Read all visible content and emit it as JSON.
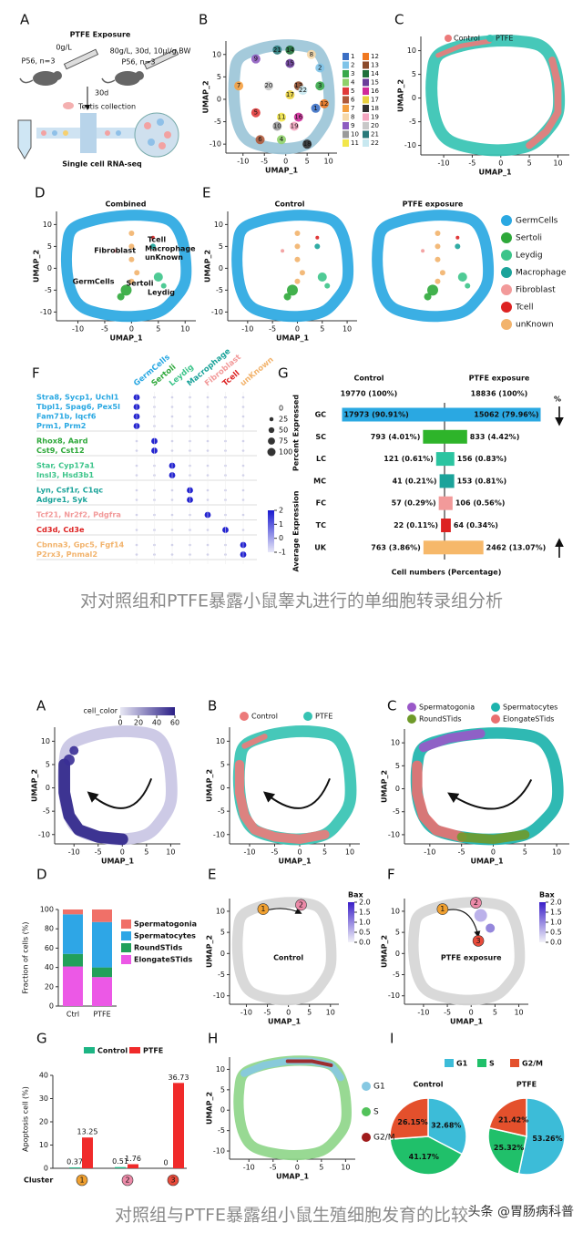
{
  "figure1": {
    "letters": [
      "A",
      "B",
      "C",
      "D",
      "E",
      "F",
      "G"
    ],
    "panel_a": {
      "title": "PTFE Exposure",
      "control_dose": "0g/L",
      "control_group": "P56, n=3",
      "ptfe_dose": "80g/L, 30d, 10μl/g.BW",
      "ptfe_group": "P56, n=3",
      "duration": "30d",
      "step1": "Testis collection",
      "step2": "Single cell RNA-seq"
    },
    "umap": {
      "xlabel": "UMAP_1",
      "ylabel": "UMAP_2",
      "xlim": [
        -14,
        12
      ],
      "ylim": [
        -12,
        13
      ],
      "xticks": [
        -10,
        -5,
        0,
        5,
        10
      ],
      "yticks": [
        -10,
        -5,
        0,
        5,
        10
      ]
    },
    "clusters": [
      {
        "label": "1",
        "color": "#3b6fc4"
      },
      {
        "label": "2",
        "color": "#7fc3e8"
      },
      {
        "label": "3",
        "color": "#38a84a"
      },
      {
        "label": "4",
        "color": "#8fd16a"
      },
      {
        "label": "5",
        "color": "#e03a3a"
      },
      {
        "label": "6",
        "color": "#b05a3a"
      },
      {
        "label": "7",
        "color": "#f5a040"
      },
      {
        "label": "8",
        "color": "#f6d8a8"
      },
      {
        "label": "9",
        "color": "#8e5cc0"
      },
      {
        "label": "10",
        "color": "#9a9a9a"
      },
      {
        "label": "11",
        "color": "#f2e64a"
      },
      {
        "label": "12",
        "color": "#f07820"
      },
      {
        "label": "13",
        "color": "#8c4a2a"
      },
      {
        "label": "14",
        "color": "#1f6f3a"
      },
      {
        "label": "15",
        "color": "#6a3d9a"
      },
      {
        "label": "16",
        "color": "#d02a9a"
      },
      {
        "label": "17",
        "color": "#e8d040"
      },
      {
        "label": "18",
        "color": "#303030"
      },
      {
        "label": "19",
        "color": "#f4a6c0"
      },
      {
        "label": "20",
        "color": "#c8c8c8"
      },
      {
        "label": "21",
        "color": "#2a7a7a"
      },
      {
        "label": "22",
        "color": "#c8e8f0"
      }
    ],
    "conditions": [
      {
        "name": "Control",
        "color": "#ec7a7a"
      },
      {
        "name": "PTFE",
        "color": "#36c3b3"
      }
    ],
    "combined_title": "Combined",
    "split_titles": [
      "Control",
      "PTFE exposure"
    ],
    "cell_types": [
      {
        "name": "GermCells",
        "color": "#2aa8e2"
      },
      {
        "name": "Sertoli",
        "color": "#2ea83a"
      },
      {
        "name": "Leydig",
        "color": "#3cc48a"
      },
      {
        "name": "Macrophage",
        "color": "#1ba39a"
      },
      {
        "name": "Fibroblast",
        "color": "#f29a9a"
      },
      {
        "name": "Tcell",
        "color": "#dd2222"
      },
      {
        "name": "unKnown",
        "color": "#f2b36c"
      }
    ],
    "dotplot": {
      "gene_groups": [
        [
          "Stra8, Sycp1, Uchl1",
          "Tbpl1, Spag6, Pex5l",
          "Fam71b, Iqcf6",
          "Prm1, Prm2"
        ],
        [
          "Rhox8, Aard",
          "Cst9, Cst12"
        ],
        [
          "Star, Cyp17a1",
          "Insl3, Hsd3b1"
        ],
        [
          "Lyn, Csf1r, C1qc",
          "Adgre1, Syk"
        ],
        [
          "Tcf21, Nr2f2, Pdgfra"
        ],
        [
          "Cd3d, Cd3e"
        ],
        [
          "Cbnna3, Gpc5, Fgf14",
          "P2rx3, Pnmal2"
        ]
      ],
      "size_title": "Percent Expressed",
      "size_ticks": [
        0,
        25,
        50,
        75,
        100
      ],
      "color_title": "Average Expression",
      "color_ticks": [
        2,
        1,
        0,
        -1
      ]
    },
    "caption": "对对照组和PTFE暴露小鼠睾丸进行的单细胞转录组分析"
  },
  "figure2": {
    "letters": [
      "A",
      "B",
      "C",
      "D",
      "E",
      "F",
      "G",
      "H",
      "I"
    ],
    "cell_color": {
      "title": "cell_color",
      "ticks": [
        0,
        20,
        40,
        60
      ]
    },
    "stages": [
      {
        "name": "Spermatogonia",
        "color": "#9a58c8"
      },
      {
        "name": "Spermatocytes",
        "color": "#1db3ad"
      },
      {
        "name": "RoundSTids",
        "color": "#6f9a2a"
      },
      {
        "name": "ElongateSTids",
        "color": "#ea7070"
      }
    ],
    "bax": {
      "title": "Bax",
      "ticks": [
        {
          "value": 2,
          "label": "2.0"
        },
        {
          "value": 1.5,
          "label": "1.5"
        },
        {
          "value": 1,
          "label": "1.0"
        },
        {
          "value": 0.5,
          "label": "0.5"
        },
        {
          "value": 0,
          "label": "0.0"
        }
      ]
    },
    "trajectory_titles": [
      "Control",
      "PTFE exposure"
    ],
    "milestones": [
      "1",
      "2",
      "3"
    ],
    "phases": [
      {
        "name": "G1",
        "color": "#86c8e2"
      },
      {
        "name": "S",
        "color": "#52c25a"
      },
      {
        "name": "G2/M",
        "color": "#a01c1c"
      }
    ],
    "caption": "对照组与PTFE暴露组小鼠生殖细胞发育的比较",
    "watermark": "头条 @胃肠病科普"
  },
  "chart_data": [
    {
      "type": "butterfly",
      "categories": [
        "GC",
        "SC",
        "LC",
        "MC",
        "FC",
        "TC",
        "UK"
      ],
      "colors": [
        "#2aa8e2",
        "#2eb42a",
        "#2bc4a0",
        "#1ba39a",
        "#f29a9a",
        "#dd2222",
        "#f6b86a"
      ],
      "series": [
        {
          "name": "Control",
          "values": [
            90.91,
            4.01,
            0.61,
            0.21,
            0.29,
            0.11,
            3.86
          ],
          "value_labels": [
            "17973 (90.91%)",
            "793 (4.01%)",
            "121 (0.61%)",
            "41 (0.21%)",
            "57 (0.29%)",
            "22 (0.11%)",
            "763 (3.86%)"
          ]
        },
        {
          "name": "PTFE exposure",
          "values": [
            79.96,
            4.42,
            0.83,
            0.81,
            0.56,
            0.34,
            13.07
          ],
          "value_labels": [
            "15062 (79.96%)",
            "833 (4.42%)",
            "156 (0.83%)",
            "153 (0.81%)",
            "106 (0.56%)",
            "64 (0.34%)",
            "2462 (13.07%)"
          ]
        }
      ],
      "totals": [
        "19770 (100%)",
        "18836 (100%)"
      ],
      "unit_label": "%",
      "xlabel": "Cell numbers (Percentage)",
      "xlim": [
        0,
        100
      ],
      "xscale": "sqrt"
    },
    {
      "type": "stacked",
      "ylabel": "Fraction of cells (%)",
      "categories": [
        "Ctrl",
        "PTFE"
      ],
      "series": [
        {
          "name": "Spermatogonia",
          "color": "#f07068",
          "values": [
            5,
            13
          ]
        },
        {
          "name": "Spermatocytes",
          "color": "#2ea6e6",
          "values": [
            41,
            47
          ]
        },
        {
          "name": "RoundSTids",
          "color": "#22a05a",
          "values": [
            13,
            10
          ]
        },
        {
          "name": "ElongateSTids",
          "color": "#ec58e6",
          "values": [
            41,
            30
          ]
        }
      ],
      "ylim": [
        0,
        100
      ],
      "yticks": [
        0,
        20,
        40,
        60,
        80,
        100
      ]
    },
    {
      "type": "bar",
      "ylabel": "Apoptosis cell (%)",
      "xlabel": "Cluster",
      "categories": [
        "1",
        "2",
        "3"
      ],
      "category_colors": [
        "#f0a030",
        "#ec8aa8",
        "#e84a3a"
      ],
      "series": [
        {
          "name": "Control",
          "color": "#1db584",
          "values": [
            0.37,
            0.51,
            0
          ]
        },
        {
          "name": "PTFE",
          "color": "#f02a2a",
          "values": [
            13.25,
            1.76,
            36.73
          ]
        }
      ],
      "ylim": [
        0,
        40
      ],
      "yticks": [
        0,
        10,
        20,
        30,
        40
      ]
    },
    {
      "type": "pie",
      "title": "Control",
      "categories": [
        "G1",
        "S",
        "G2/M"
      ],
      "colors": [
        "#3cbcd8",
        "#20c06a",
        "#e4502c"
      ],
      "values": [
        32.68,
        41.17,
        26.15
      ],
      "value_labels": [
        "32.68%",
        "41.17%",
        "26.15%"
      ]
    },
    {
      "type": "pie",
      "title": "PTFE",
      "categories": [
        "G1",
        "S",
        "G2/M"
      ],
      "colors": [
        "#3cbcd8",
        "#20c06a",
        "#e4502c"
      ],
      "values": [
        53.26,
        25.32,
        21.42
      ],
      "value_labels": [
        "53.26%",
        "25.32%",
        "21.42%"
      ]
    }
  ]
}
